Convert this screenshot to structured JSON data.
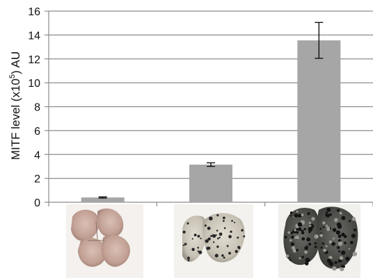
{
  "chart_data": {
    "type": "bar",
    "categories": [
      "",
      "",
      ""
    ],
    "values": [
      0.4,
      3.15,
      13.55
    ],
    "errors": [
      0.05,
      0.15,
      1.5
    ],
    "ylabel_prefix": "MITF level (x10",
    "ylabel_sup": "5",
    "ylabel_suffix": ") AU",
    "ylim": [
      0,
      16
    ],
    "yticks": [
      0,
      2,
      4,
      6,
      8,
      10,
      12,
      14,
      16
    ],
    "grid": true,
    "legend": "none",
    "colors": {
      "bar": "#a6a6a6",
      "grid": "#8c8c8c",
      "error": "#111111"
    },
    "images": [
      "healthy-lung-photo",
      "moderate-metastasis-lung-photo",
      "severe-metastasis-lung-photo"
    ]
  }
}
